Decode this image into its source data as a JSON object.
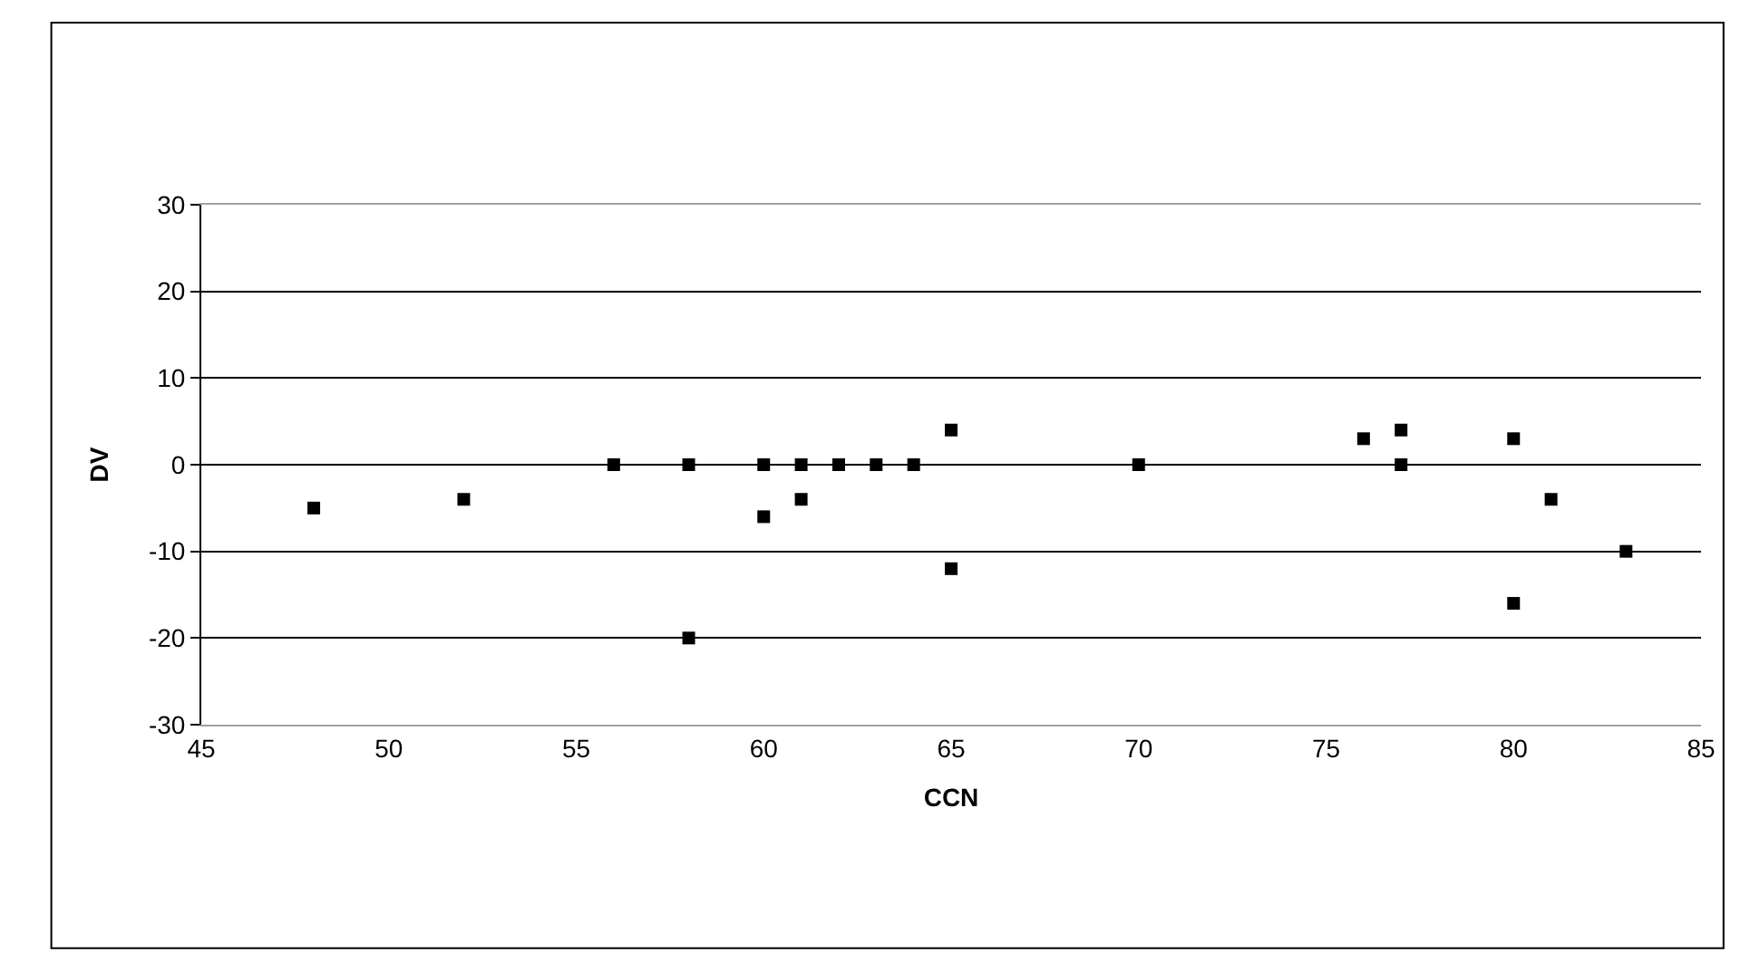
{
  "chart_data": {
    "type": "scatter",
    "xlabel": "CCN",
    "ylabel": "DV",
    "x": [
      48,
      52,
      56,
      58,
      58,
      60,
      60,
      61,
      61,
      62,
      63,
      64,
      65,
      65,
      70,
      76,
      77,
      77,
      80,
      80,
      81,
      83
    ],
    "series": [
      {
        "color": "#000000",
        "values": [
          -5,
          -4,
          0,
          0,
          -20,
          0,
          -6,
          0,
          -4,
          0,
          0,
          0,
          4,
          -12,
          0,
          3,
          4,
          0,
          3,
          -16,
          -4,
          -10
        ]
      }
    ],
    "xlim": [
      45,
      85
    ],
    "xticks": [
      45,
      50,
      55,
      60,
      65,
      70,
      75,
      80,
      85
    ],
    "ylim": [
      -30,
      30
    ],
    "yticks": [
      -30,
      -20,
      -10,
      0,
      10,
      20,
      30
    ],
    "grid": "y",
    "marker": "square"
  }
}
